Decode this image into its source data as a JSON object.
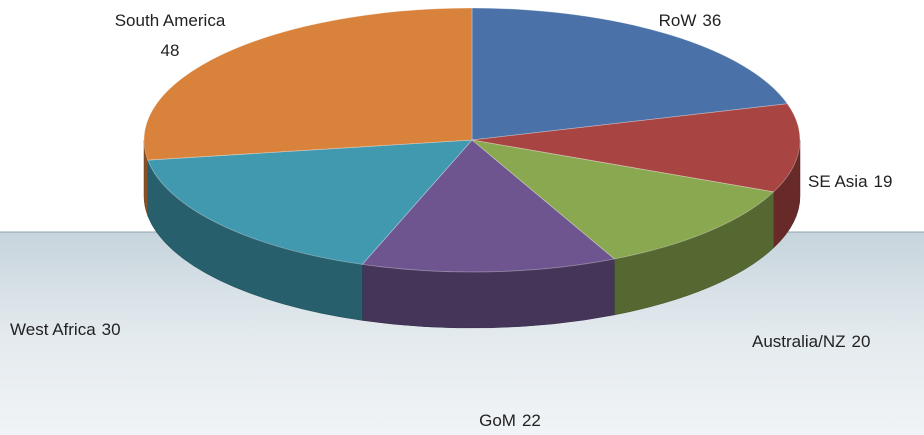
{
  "chart_data": {
    "type": "pie3d",
    "categories": [
      "RoW",
      "SE Asia",
      "Australia/NZ",
      "GoM",
      "West Africa",
      "South America"
    ],
    "values": [
      36,
      19,
      20,
      22,
      30,
      48
    ],
    "colors": [
      "#4a72a8",
      "#a84441",
      "#8aa84f",
      "#6f5590",
      "#4199b0",
      "#d9823b"
    ]
  }
}
